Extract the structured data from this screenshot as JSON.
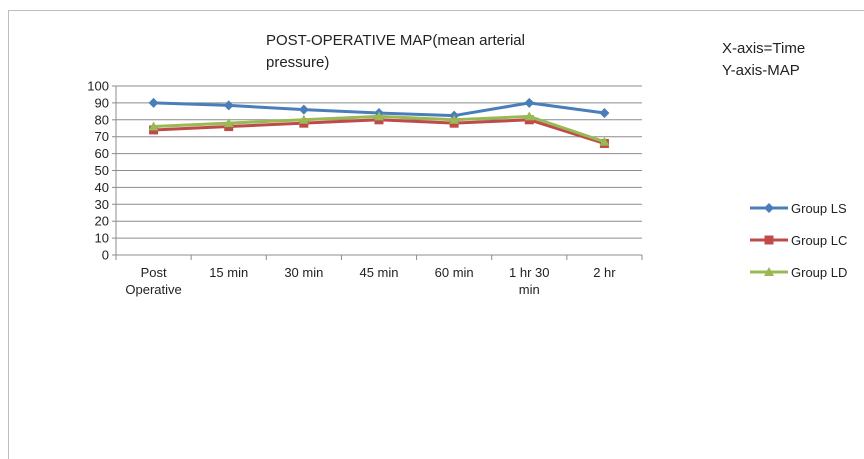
{
  "chart_data": {
    "type": "line",
    "title_line1": "POST-OPERATIVE MAP(mean arterial",
    "title_line2": "pressure)",
    "axis_note_x": "X-axis=Time",
    "axis_note_y": "Y-axis-MAP",
    "categories": [
      [
        "Post",
        "Operative"
      ],
      [
        "15 min"
      ],
      [
        "30 min"
      ],
      [
        "45 min"
      ],
      [
        "60 min"
      ],
      [
        "1 hr 30",
        "min"
      ],
      [
        "2 hr"
      ]
    ],
    "ylim": [
      0,
      100
    ],
    "ytick_step": 10,
    "grid": true,
    "legend_position": "right",
    "series": [
      {
        "name": "Group LS",
        "marker": "diamond",
        "color": "#4a7ebb",
        "values": [
          90,
          88.5,
          86,
          84,
          82.5,
          90,
          84
        ]
      },
      {
        "name": "Group LC",
        "marker": "square",
        "color": "#be4b48",
        "values": [
          74,
          76,
          78,
          80,
          78,
          80,
          66
        ]
      },
      {
        "name": "Group LD",
        "marker": "triangle",
        "color": "#98b954",
        "values": [
          76,
          78,
          80,
          82,
          80,
          82,
          67
        ]
      }
    ]
  }
}
